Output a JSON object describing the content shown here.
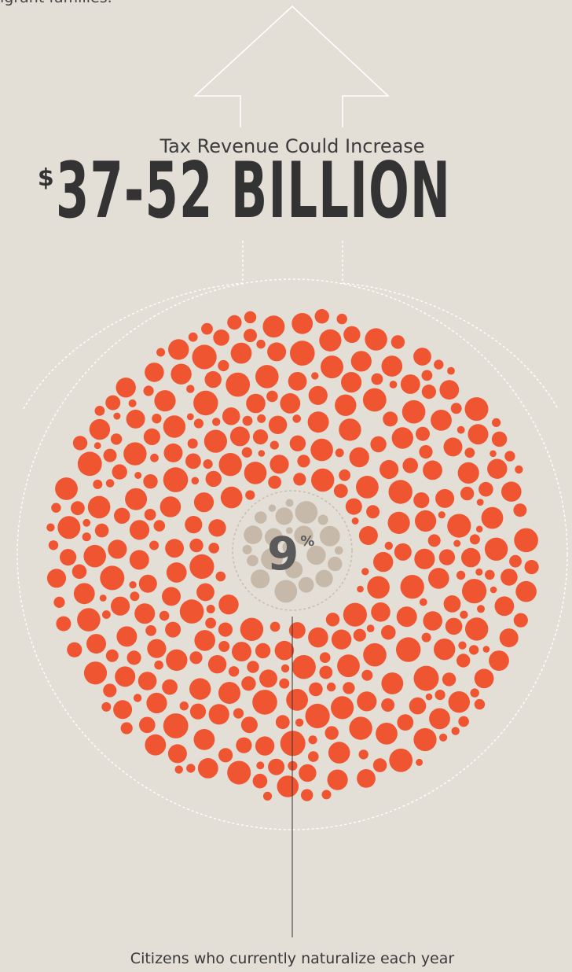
{
  "top_text": "igrant families.",
  "subtitle": "Tax Revenue Could Increase",
  "big_number": {
    "currency": "$",
    "amount": "37-52 BILLION"
  },
  "percentage": {
    "value": "9",
    "sign": "%"
  },
  "caption": "Citizens who currently naturalize each year",
  "colors": {
    "background": "#e3ded6",
    "bubble_accent": "#f05532",
    "bubble_muted": "#c6b9aa",
    "outline": "#ffffff",
    "text_dark": "#333333"
  }
}
